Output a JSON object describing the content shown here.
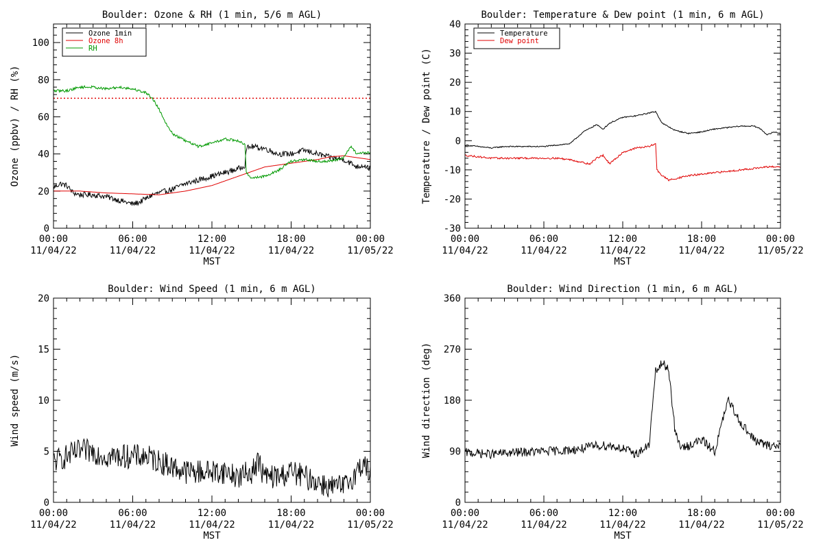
{
  "chart_data": [
    {
      "type": "line",
      "title": "Boulder: Ozone & RH (1 min, 5/6 m AGL)",
      "xlabel": "MST",
      "ylabel": "Ozone (ppbv) / RH (%)",
      "xlim": [
        0,
        24
      ],
      "ylim": [
        0,
        110
      ],
      "yticks": [
        0,
        20,
        40,
        60,
        80,
        100
      ],
      "xticks": [
        {
          "time": "00:00",
          "date": "11/04/22"
        },
        {
          "time": "06:00",
          "date": "11/04/22"
        },
        {
          "time": "12:00",
          "date": "11/04/22"
        },
        {
          "time": "18:00",
          "date": "11/04/22"
        },
        {
          "time": "00:00",
          "date": "11/05/22"
        }
      ],
      "legend": {
        "position": "top-left",
        "entries": [
          {
            "name": "Ozone 1min",
            "color": "#000000"
          },
          {
            "name": "Ozone 8h",
            "color": "#e00000"
          },
          {
            "name": "RH",
            "color": "#009900"
          }
        ]
      },
      "reference_line": {
        "y": 70,
        "color": "#e00000",
        "style": "dotted"
      },
      "series": [
        {
          "name": "Ozone 1min",
          "color": "#000000",
          "noise": 1.5,
          "x": [
            0,
            0.5,
            1,
            1.5,
            2,
            3,
            4,
            5,
            5.5,
            6,
            6.5,
            7,
            7.5,
            8,
            9,
            10,
            11,
            12,
            13,
            14,
            14.5,
            14.6,
            15,
            16,
            17,
            18,
            19,
            20,
            21,
            22,
            23,
            23.5,
            24
          ],
          "y": [
            22,
            24,
            23,
            19,
            18,
            18,
            17,
            15,
            14,
            13,
            14,
            16,
            18,
            19,
            21,
            24,
            26,
            28,
            30,
            32,
            34,
            43,
            44,
            43,
            40,
            40,
            42,
            40,
            38,
            37,
            33,
            34,
            32
          ]
        },
        {
          "name": "Ozone 8h",
          "color": "#e00000",
          "noise": 0,
          "x": [
            0,
            2,
            4,
            6,
            8,
            10,
            12,
            14,
            16,
            18,
            20,
            21,
            22,
            23,
            24
          ],
          "y": [
            20,
            20,
            19,
            18.5,
            18,
            20,
            23,
            28,
            33,
            35,
            37,
            38.5,
            39,
            38,
            37
          ]
        },
        {
          "name": "RH",
          "color": "#009900",
          "noise": 0.7,
          "x": [
            0,
            1,
            2,
            3,
            4,
            5,
            6,
            7,
            7.5,
            8,
            8.5,
            9,
            10,
            11,
            12,
            13,
            14,
            14.5,
            14.6,
            15,
            16,
            17,
            18,
            19,
            20,
            21,
            22,
            22.5,
            23,
            24
          ],
          "y": [
            74,
            74,
            76,
            76,
            75,
            76,
            75,
            73,
            70,
            64,
            57,
            51,
            47,
            44,
            46,
            48,
            47,
            45,
            30,
            27,
            28,
            31,
            36,
            37,
            36,
            36,
            38,
            44,
            40,
            41
          ]
        }
      ]
    },
    {
      "type": "line",
      "title": "Boulder: Temperature & Dew point (1 min, 6 m AGL)",
      "xlabel": "MST",
      "ylabel": "Temperature / Dew point (C)",
      "xlim": [
        0,
        24
      ],
      "ylim": [
        -30,
        40
      ],
      "yticks": [
        -30,
        -20,
        -10,
        0,
        10,
        20,
        30,
        40
      ],
      "xticks": [
        {
          "time": "00:00",
          "date": "11/04/22"
        },
        {
          "time": "06:00",
          "date": "11/04/22"
        },
        {
          "time": "12:00",
          "date": "11/04/22"
        },
        {
          "time": "18:00",
          "date": "11/04/22"
        },
        {
          "time": "00:00",
          "date": "11/05/22"
        }
      ],
      "legend": {
        "position": "top-left",
        "entries": [
          {
            "name": "Temperature",
            "color": "#000000"
          },
          {
            "name": "Dew point",
            "color": "#e00000"
          }
        ]
      },
      "series": [
        {
          "name": "Temperature",
          "color": "#000000",
          "noise": 0.2,
          "x": [
            0,
            1,
            2,
            3,
            4,
            5,
            6,
            7,
            8,
            9,
            10,
            10.5,
            11,
            12,
            13,
            14,
            14.5,
            15,
            16,
            17,
            18,
            19,
            20,
            21,
            22,
            22.5,
            23,
            23.5,
            24
          ],
          "y": [
            -1.5,
            -2,
            -2.5,
            -2,
            -2,
            -2,
            -2,
            -1.5,
            -1,
            3,
            5.5,
            4,
            6,
            8,
            8.5,
            9.5,
            10,
            6,
            3.5,
            2.5,
            3,
            4,
            4.5,
            5,
            5,
            4,
            2,
            3,
            2.5
          ]
        },
        {
          "name": "Dew point",
          "color": "#e00000",
          "noise": 0.3,
          "x": [
            0,
            2,
            4,
            6,
            7,
            8,
            9,
            9.5,
            10,
            10.5,
            11,
            12,
            13,
            14,
            14.5,
            14.6,
            15,
            15.5,
            16,
            17,
            18,
            19,
            20,
            21,
            22,
            23,
            24
          ],
          "y": [
            -5,
            -6,
            -6,
            -6,
            -6,
            -6.5,
            -7.5,
            -8,
            -6,
            -5,
            -8,
            -4,
            -2.5,
            -2,
            -1,
            -10,
            -12,
            -13.5,
            -13,
            -12,
            -11.5,
            -11,
            -10.5,
            -10,
            -9.5,
            -9,
            -9
          ]
        }
      ]
    },
    {
      "type": "line",
      "title": "Boulder: Wind Speed (1 min, 6 m AGL)",
      "xlabel": "MST",
      "ylabel": "Wind speed (m/s)",
      "xlim": [
        0,
        24
      ],
      "ylim": [
        0,
        20
      ],
      "yticks": [
        0,
        5,
        10,
        15,
        20
      ],
      "xticks": [
        {
          "time": "00:00",
          "date": "11/04/22"
        },
        {
          "time": "06:00",
          "date": "11/04/22"
        },
        {
          "time": "12:00",
          "date": "11/04/22"
        },
        {
          "time": "18:00",
          "date": "11/04/22"
        },
        {
          "time": "00:00",
          "date": "11/05/22"
        }
      ],
      "series": [
        {
          "name": "Wind speed",
          "color": "#000000",
          "noise": 1.2,
          "x": [
            0,
            1,
            2,
            3,
            4,
            5,
            6,
            7,
            8,
            9,
            10,
            11,
            12,
            13,
            14,
            15,
            15.5,
            16,
            17,
            18,
            19,
            20,
            21,
            22,
            23,
            23.5,
            24
          ],
          "y": [
            4,
            4.5,
            5,
            5,
            4.5,
            4.5,
            4.5,
            4.5,
            4,
            3.5,
            3,
            3,
            3,
            3,
            2.5,
            3,
            4,
            2.5,
            2.5,
            3,
            2.5,
            2,
            1.5,
            1.5,
            3,
            4,
            2.5
          ]
        }
      ]
    },
    {
      "type": "line",
      "title": "Boulder: Wind Direction (1 min, 6 m AGL)",
      "xlabel": "MST",
      "ylabel": "Wind direction (deg)",
      "xlim": [
        0,
        24
      ],
      "ylim": [
        0,
        360
      ],
      "yticks": [
        0,
        90,
        180,
        270,
        360
      ],
      "xticks": [
        {
          "time": "00:00",
          "date": "11/04/22"
        },
        {
          "time": "06:00",
          "date": "11/04/22"
        },
        {
          "time": "12:00",
          "date": "11/04/22"
        },
        {
          "time": "18:00",
          "date": "11/04/22"
        },
        {
          "time": "00:00",
          "date": "11/05/22"
        }
      ],
      "series": [
        {
          "name": "Wind direction",
          "color": "#000000",
          "noise": 8,
          "x": [
            0,
            2,
            4,
            6,
            8,
            9,
            10,
            11,
            12,
            13,
            14,
            14.5,
            15,
            15.5,
            16,
            16.5,
            17,
            18,
            19,
            20,
            21,
            22,
            23,
            24
          ],
          "y": [
            88,
            85,
            88,
            90,
            92,
            95,
            100,
            100,
            95,
            85,
            100,
            230,
            245,
            235,
            120,
            95,
            100,
            110,
            90,
            180,
            140,
            110,
            100,
            100
          ]
        }
      ]
    }
  ]
}
